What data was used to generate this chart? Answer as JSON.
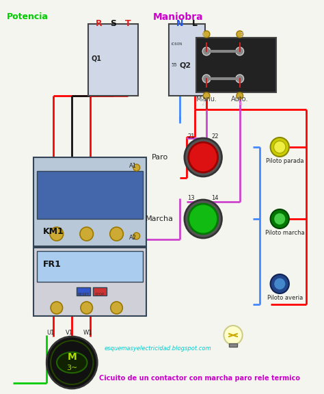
{
  "bg_color": "#000000",
  "title_potencia": "Potencia",
  "title_maniobra": "Maniobra",
  "label_q1": "Q1",
  "label_q2": "Q2",
  "label_km1": "KM1",
  "label_fr1": "FR1",
  "label_paro": "Paro",
  "label_marcha": "Marcha",
  "label_manu": "Manu.",
  "label_auto": "Auto.",
  "label_u1": "U1",
  "label_v1": "V1",
  "label_w1": "W1",
  "label_m": "M",
  "label_3ph": "3~",
  "label_piloto_parada": "Piloto parada",
  "label_piloto_marcha": "Piloto marcha",
  "label_piloto_averia": "Piloto averia",
  "label_r": "R",
  "label_s": "S",
  "label_t": "T",
  "label_n": "N",
  "label_l": "L",
  "label_21_22": "21    22",
  "label_13_14": "13    14",
  "website": "esquemasyelectricidad.blogspot.com",
  "bottom_text": "Cicuito de un contactor con marcha paro rele termico",
  "color_potencia": "#00cc00",
  "color_maniobra": "#cc00cc",
  "color_bottom_text": "#cc00cc",
  "color_website": "#00cccc",
  "color_red_wire": "#ff0000",
  "color_blue_wire": "#4488ff",
  "color_purple_wire": "#cc44cc",
  "color_green_wire": "#00cc00",
  "color_brown_wire": "#8B4513",
  "color_label_q1": "#ffffff",
  "color_label_r": "#ff3333",
  "color_label_s": "#000000",
  "color_label_t": "#ff3333",
  "color_label_n": "#4488ff",
  "color_label_l": "#000000",
  "figsize": [
    4.74,
    5.76
  ],
  "dpi": 100
}
